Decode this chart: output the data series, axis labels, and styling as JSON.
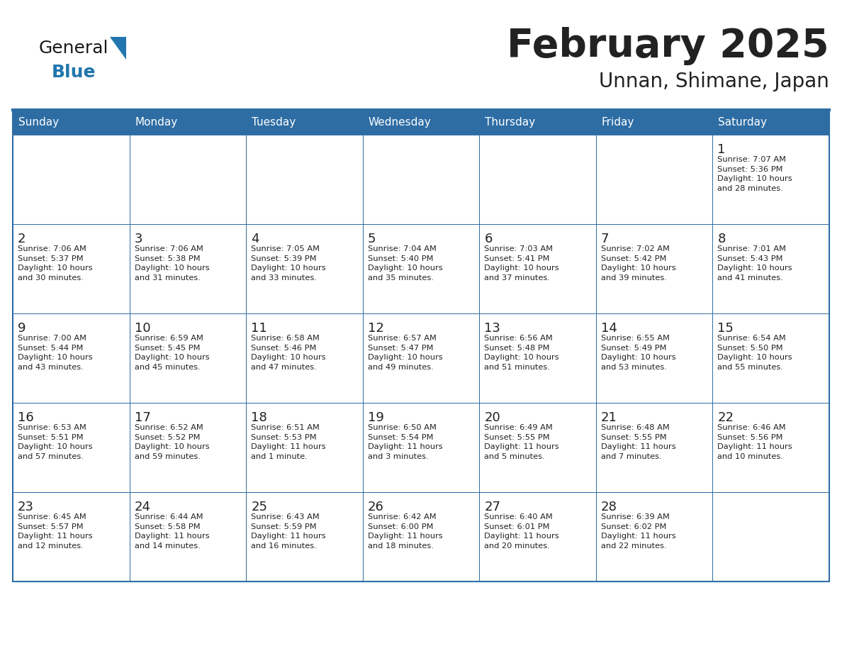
{
  "title": "February 2025",
  "subtitle": "Unnan, Shimane, Japan",
  "header_color": "#2E6DA4",
  "header_text_color": "#FFFFFF",
  "cell_bg_color": "#FFFFFF",
  "border_color": "#2E6DA4",
  "text_color": "#222222",
  "days_of_week": [
    "Sunday",
    "Monday",
    "Tuesday",
    "Wednesday",
    "Thursday",
    "Friday",
    "Saturday"
  ],
  "logo_color1": "#1a1a1a",
  "logo_color2": "#2176AE",
  "calendar_data": [
    [
      {
        "day": "",
        "info": ""
      },
      {
        "day": "",
        "info": ""
      },
      {
        "day": "",
        "info": ""
      },
      {
        "day": "",
        "info": ""
      },
      {
        "day": "",
        "info": ""
      },
      {
        "day": "",
        "info": ""
      },
      {
        "day": "1",
        "info": "Sunrise: 7:07 AM\nSunset: 5:36 PM\nDaylight: 10 hours\nand 28 minutes."
      }
    ],
    [
      {
        "day": "2",
        "info": "Sunrise: 7:06 AM\nSunset: 5:37 PM\nDaylight: 10 hours\nand 30 minutes."
      },
      {
        "day": "3",
        "info": "Sunrise: 7:06 AM\nSunset: 5:38 PM\nDaylight: 10 hours\nand 31 minutes."
      },
      {
        "day": "4",
        "info": "Sunrise: 7:05 AM\nSunset: 5:39 PM\nDaylight: 10 hours\nand 33 minutes."
      },
      {
        "day": "5",
        "info": "Sunrise: 7:04 AM\nSunset: 5:40 PM\nDaylight: 10 hours\nand 35 minutes."
      },
      {
        "day": "6",
        "info": "Sunrise: 7:03 AM\nSunset: 5:41 PM\nDaylight: 10 hours\nand 37 minutes."
      },
      {
        "day": "7",
        "info": "Sunrise: 7:02 AM\nSunset: 5:42 PM\nDaylight: 10 hours\nand 39 minutes."
      },
      {
        "day": "8",
        "info": "Sunrise: 7:01 AM\nSunset: 5:43 PM\nDaylight: 10 hours\nand 41 minutes."
      }
    ],
    [
      {
        "day": "9",
        "info": "Sunrise: 7:00 AM\nSunset: 5:44 PM\nDaylight: 10 hours\nand 43 minutes."
      },
      {
        "day": "10",
        "info": "Sunrise: 6:59 AM\nSunset: 5:45 PM\nDaylight: 10 hours\nand 45 minutes."
      },
      {
        "day": "11",
        "info": "Sunrise: 6:58 AM\nSunset: 5:46 PM\nDaylight: 10 hours\nand 47 minutes."
      },
      {
        "day": "12",
        "info": "Sunrise: 6:57 AM\nSunset: 5:47 PM\nDaylight: 10 hours\nand 49 minutes."
      },
      {
        "day": "13",
        "info": "Sunrise: 6:56 AM\nSunset: 5:48 PM\nDaylight: 10 hours\nand 51 minutes."
      },
      {
        "day": "14",
        "info": "Sunrise: 6:55 AM\nSunset: 5:49 PM\nDaylight: 10 hours\nand 53 minutes."
      },
      {
        "day": "15",
        "info": "Sunrise: 6:54 AM\nSunset: 5:50 PM\nDaylight: 10 hours\nand 55 minutes."
      }
    ],
    [
      {
        "day": "16",
        "info": "Sunrise: 6:53 AM\nSunset: 5:51 PM\nDaylight: 10 hours\nand 57 minutes."
      },
      {
        "day": "17",
        "info": "Sunrise: 6:52 AM\nSunset: 5:52 PM\nDaylight: 10 hours\nand 59 minutes."
      },
      {
        "day": "18",
        "info": "Sunrise: 6:51 AM\nSunset: 5:53 PM\nDaylight: 11 hours\nand 1 minute."
      },
      {
        "day": "19",
        "info": "Sunrise: 6:50 AM\nSunset: 5:54 PM\nDaylight: 11 hours\nand 3 minutes."
      },
      {
        "day": "20",
        "info": "Sunrise: 6:49 AM\nSunset: 5:55 PM\nDaylight: 11 hours\nand 5 minutes."
      },
      {
        "day": "21",
        "info": "Sunrise: 6:48 AM\nSunset: 5:55 PM\nDaylight: 11 hours\nand 7 minutes."
      },
      {
        "day": "22",
        "info": "Sunrise: 6:46 AM\nSunset: 5:56 PM\nDaylight: 11 hours\nand 10 minutes."
      }
    ],
    [
      {
        "day": "23",
        "info": "Sunrise: 6:45 AM\nSunset: 5:57 PM\nDaylight: 11 hours\nand 12 minutes."
      },
      {
        "day": "24",
        "info": "Sunrise: 6:44 AM\nSunset: 5:58 PM\nDaylight: 11 hours\nand 14 minutes."
      },
      {
        "day": "25",
        "info": "Sunrise: 6:43 AM\nSunset: 5:59 PM\nDaylight: 11 hours\nand 16 minutes."
      },
      {
        "day": "26",
        "info": "Sunrise: 6:42 AM\nSunset: 6:00 PM\nDaylight: 11 hours\nand 18 minutes."
      },
      {
        "day": "27",
        "info": "Sunrise: 6:40 AM\nSunset: 6:01 PM\nDaylight: 11 hours\nand 20 minutes."
      },
      {
        "day": "28",
        "info": "Sunrise: 6:39 AM\nSunset: 6:02 PM\nDaylight: 11 hours\nand 22 minutes."
      },
      {
        "day": "",
        "info": ""
      }
    ]
  ]
}
